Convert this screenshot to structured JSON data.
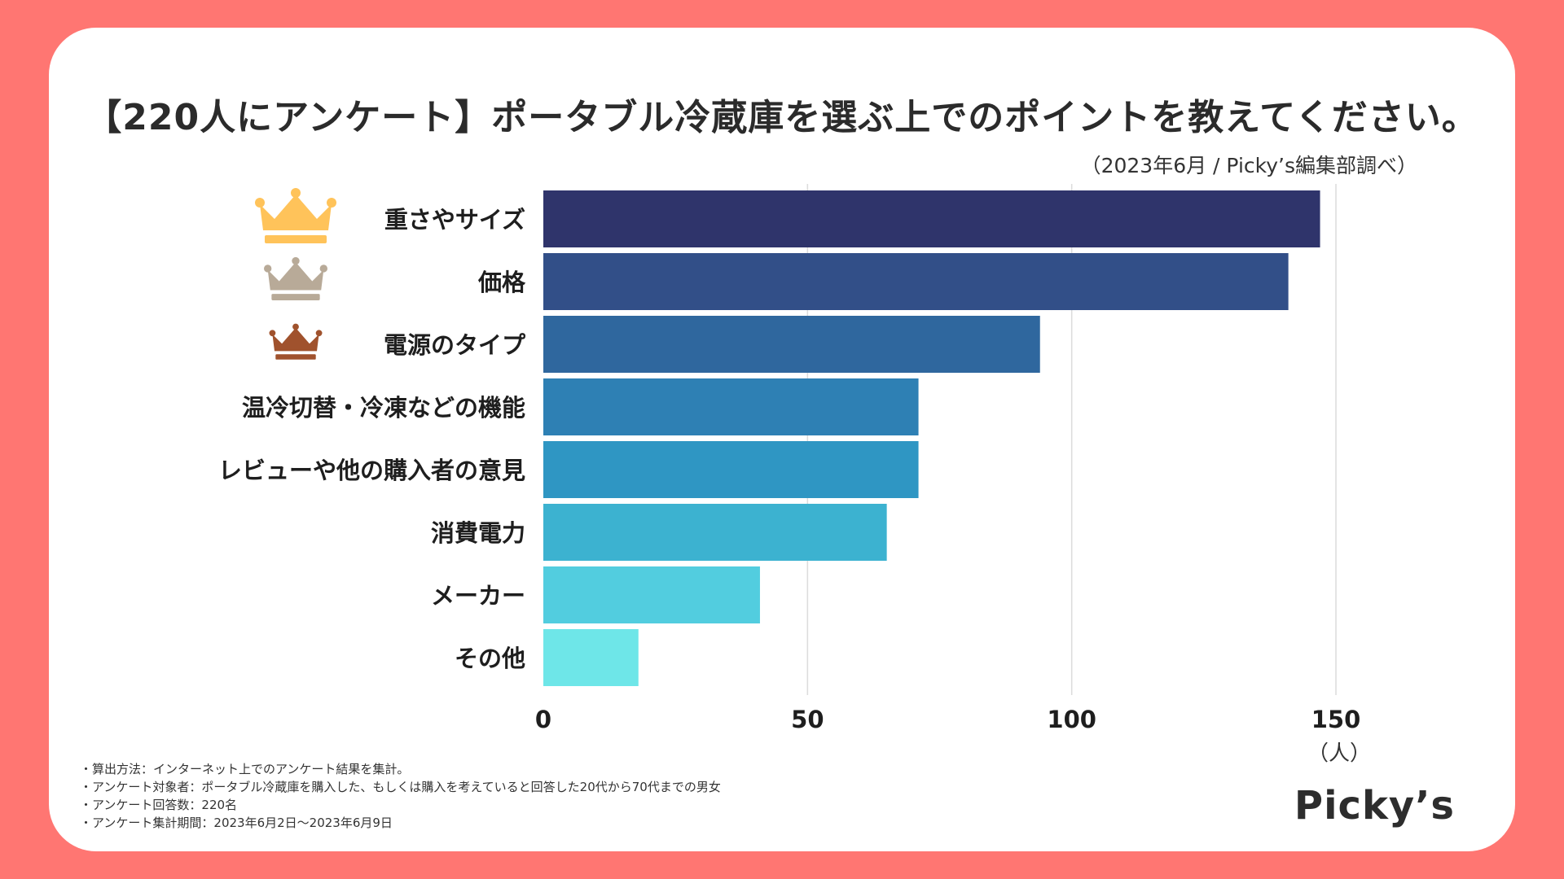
{
  "title": "【220人にアンケート】ポータブル冷蔵庫を選ぶ上でのポイントを教えてください。",
  "source_note": "（2023年6月 / Picky’s編集部調べ）",
  "footnotes": [
    "・算出方法：インターネット上でのアンケート結果を集計。",
    "・アンケート対象者：ポータブル冷蔵庫を購入した、もしくは購入を考えていると回答した20代から70代までの男女",
    "・アンケート回答数：220名",
    "・アンケート集計期間：2023年6月2日〜2023年6月9日"
  ],
  "logo": "Picky’s",
  "rank_icons": [
    {
      "name": "gold-crown-icon",
      "color": "#ffc35a"
    },
    {
      "name": "silver-crown-icon",
      "color": "#b8aa98"
    },
    {
      "name": "bronze-crown-icon",
      "color": "#a0522d"
    }
  ],
  "chart_data": {
    "type": "bar",
    "orientation": "horizontal",
    "categories": [
      "重さやサイズ",
      "価格",
      "電源のタイプ",
      "温冷切替・冷凍などの機能",
      "レビューや他の購入者の意見",
      "消費電力",
      "メーカー",
      "その他"
    ],
    "values": [
      147,
      141,
      94,
      71,
      71,
      65,
      41,
      18
    ],
    "colors": [
      "#2f346b",
      "#324f88",
      "#2f679e",
      "#2e80b4",
      "#2f96c3",
      "#3cb2d0",
      "#52cddf",
      "#6ee6e8"
    ],
    "xticks": [
      0,
      50,
      100,
      150
    ],
    "xlim": [
      0,
      170
    ],
    "xunit": "（人）",
    "grid": true
  }
}
